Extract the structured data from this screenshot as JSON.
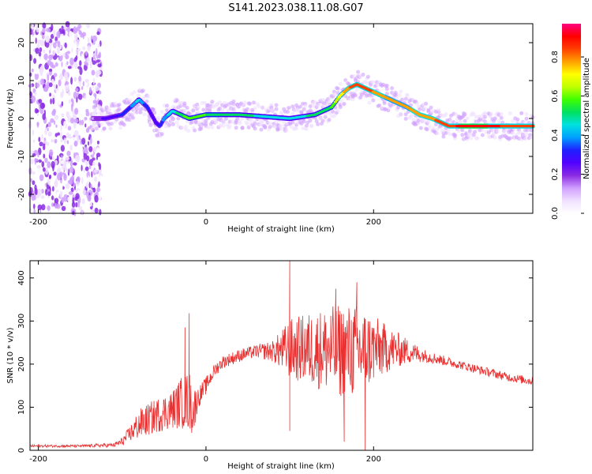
{
  "title": "S141.2023.038.11.08.G07",
  "colors": {
    "snr_line": "#e83030",
    "axis": "#000000",
    "background": "#ffffff"
  },
  "chart_data": [
    {
      "type": "heatmap",
      "xlabel": "Height of straight line (km)",
      "ylabel": "Frequency (Hz)",
      "xlim": [
        -210,
        390
      ],
      "ylim": [
        -25,
        25
      ],
      "xticks": [
        -200,
        0,
        200
      ],
      "yticks": [
        -20,
        -10,
        0,
        10,
        20
      ],
      "colorbar": {
        "label": "Normalized spectral amplitude",
        "range": [
          0,
          0.97
        ],
        "ticks": [
          "0.0",
          "0.2",
          "0.4",
          "0.6",
          "0.8"
        ],
        "tick_values": [
          0,
          0.2,
          0.4,
          0.6,
          0.8
        ],
        "colormap": [
          "#ffffff",
          "#f0e0ff",
          "#d0a0ff",
          "#8a2be2",
          "#5000ff",
          "#2020ff",
          "#00a0ff",
          "#00e0e0",
          "#00e060",
          "#40ff00",
          "#c0ff00",
          "#ffff00",
          "#ffa000",
          "#ff4000",
          "#ff0000",
          "#ff0080"
        ]
      },
      "ridge": {
        "x": [
          -135,
          -120,
          -100,
          -90,
          -80,
          -70,
          -60,
          -55,
          -50,
          -40,
          -20,
          0,
          40,
          100,
          130,
          150,
          160,
          170,
          180,
          190,
          200,
          220,
          240,
          255,
          270,
          290,
          310,
          340,
          390
        ],
        "y": [
          0,
          0,
          1,
          3,
          5,
          3,
          -1,
          -2,
          0,
          2,
          0,
          1,
          1,
          0,
          1,
          3,
          6,
          8,
          9,
          8,
          7,
          5,
          3,
          1,
          0,
          -2,
          -2,
          -2,
          -2
        ],
        "amplitude": [
          0.15,
          0.25,
          0.3,
          0.35,
          0.45,
          0.3,
          0.25,
          0.3,
          0.4,
          0.45,
          0.6,
          0.55,
          0.5,
          0.45,
          0.5,
          0.55,
          0.7,
          0.8,
          0.85,
          0.85,
          0.8,
          0.75,
          0.75,
          0.8,
          0.8,
          0.85,
          0.9,
          0.88,
          0.85
        ]
      },
      "noise_region_x": [
        -210,
        -125
      ]
    },
    {
      "type": "line",
      "xlabel": "Height of straight line (km)",
      "ylabel": "SNR (10 * v/v)",
      "xlim": [
        -210,
        390
      ],
      "ylim": [
        0,
        440
      ],
      "xticks": [
        -200,
        0,
        200
      ],
      "yticks": [
        0,
        100,
        200,
        300,
        400
      ],
      "series": [
        {
          "x": [
            -210,
            -150,
            -110,
            -100,
            -90,
            -80,
            -60,
            -40,
            -30,
            -20,
            -15,
            -10,
            0,
            10,
            20,
            40,
            60,
            80,
            100,
            130,
            160,
            180,
            200,
            220,
            240,
            260,
            280,
            300,
            320,
            340,
            360,
            390
          ],
          "y": [
            10,
            10,
            12,
            20,
            40,
            60,
            80,
            95,
            110,
            115,
            90,
            120,
            150,
            185,
            205,
            220,
            230,
            230,
            235,
            235,
            230,
            230,
            235,
            235,
            230,
            220,
            210,
            200,
            190,
            180,
            170,
            160
          ],
          "noise": [
            3,
            3,
            5,
            10,
            20,
            35,
            40,
            45,
            60,
            70,
            60,
            25,
            20,
            15,
            15,
            15,
            15,
            25,
            70,
            90,
            110,
            110,
            80,
            50,
            30,
            15,
            12,
            10,
            10,
            10,
            10,
            10
          ]
        }
      ],
      "spikes": [
        {
          "x": 100,
          "y": 440
        },
        {
          "x": 100,
          "y": 45
        },
        {
          "x": -20,
          "y": 318
        },
        {
          "x": -25,
          "y": 285
        },
        {
          "x": 165,
          "y": 20
        },
        {
          "x": 180,
          "y": 390
        },
        {
          "x": 190,
          "y": 0
        },
        {
          "x": 155,
          "y": 375
        }
      ]
    }
  ]
}
